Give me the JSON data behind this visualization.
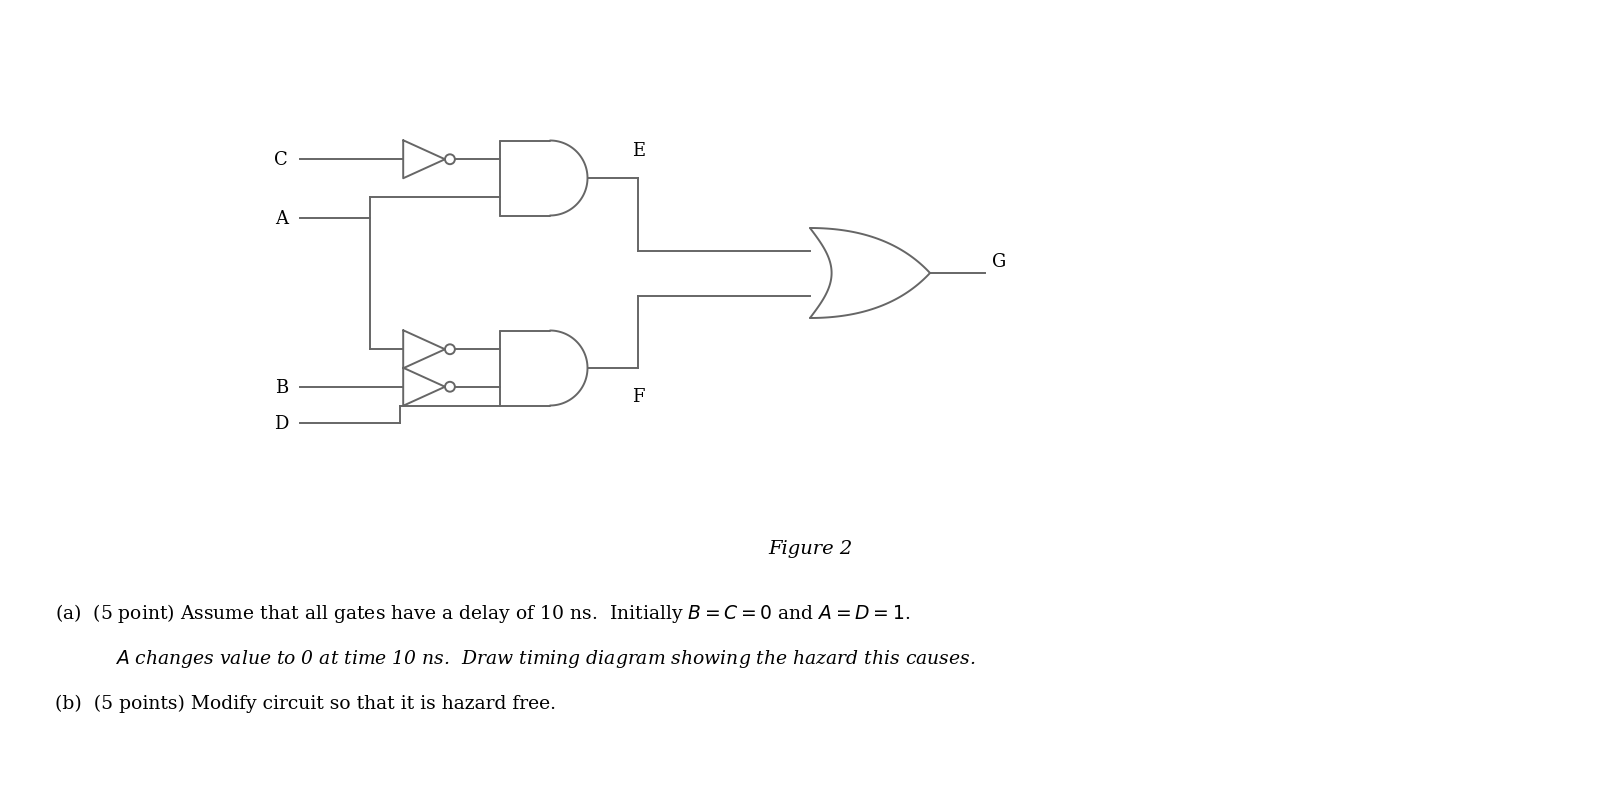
{
  "bg_color": "#ffffff",
  "line_color": "#666666",
  "font_color": "#000000",
  "fig_caption": "Figure 2",
  "text_a1": "(a)  (5 point) Assume that all gates have a delay of 10 ns.  Initially $B = C = 0$ and $A = D = 1$.",
  "text_a2": "$A$ changes value to 0 at time 10 ns.  Draw timing diagram showing the hazard this causes.",
  "text_b": "(b)  (5 points) Modify circuit so that it is hazard free.",
  "lw": 1.4,
  "font_size_labels": 13,
  "font_size_caption": 14,
  "font_size_text": 13.5
}
